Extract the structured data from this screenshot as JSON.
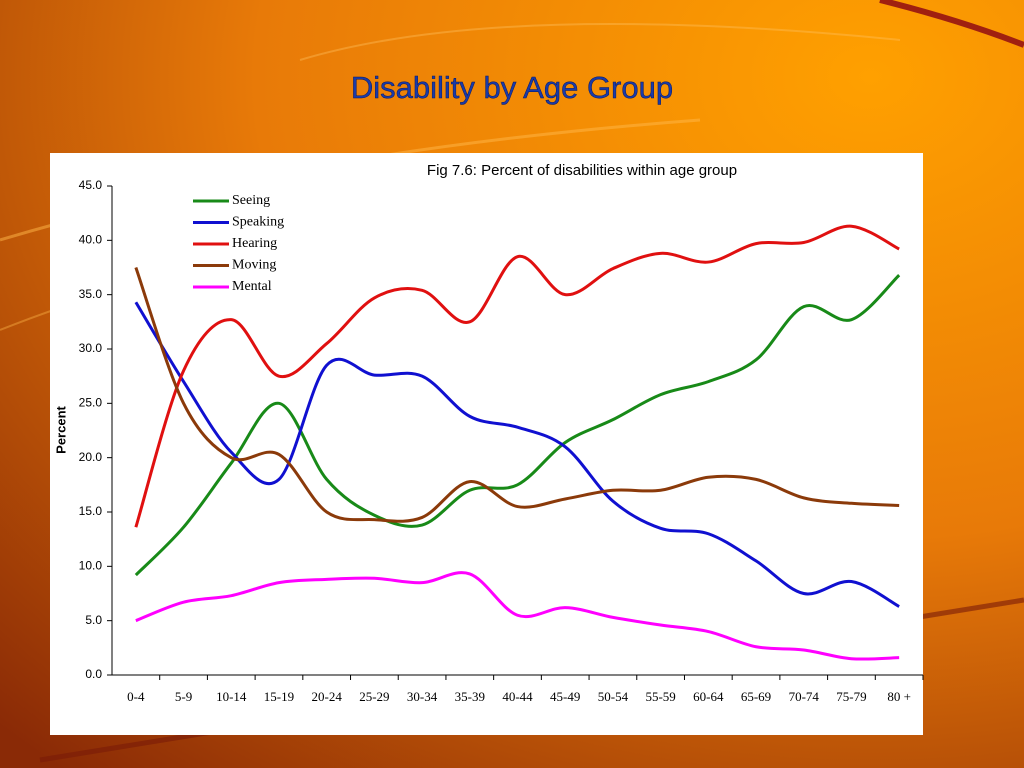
{
  "slide": {
    "title": "Disability by Age Group"
  },
  "chart_data": {
    "type": "line",
    "title": "Fig 7.6: Percent of disabilities within age group",
    "y_label": "Percent",
    "categories": [
      "0-4",
      "5-9",
      "10-14",
      "15-19",
      "20-24",
      "25-29",
      "30-34",
      "35-39",
      "40-44",
      "45-49",
      "50-54",
      "55-59",
      "60-64",
      "65-69",
      "70-74",
      "75-79",
      "80 +"
    ],
    "series": [
      {
        "name": "Seeing",
        "color": "#188a18",
        "values": [
          9.2,
          13.6,
          19.5,
          25.0,
          18.0,
          14.7,
          13.8,
          17.0,
          17.5,
          21.4,
          23.5,
          25.8,
          27.0,
          29.0,
          33.9,
          32.7,
          36.8
        ]
      },
      {
        "name": "Speaking",
        "color": "#1010d0",
        "values": [
          34.3,
          27.0,
          20.5,
          18.0,
          28.5,
          27.6,
          27.5,
          23.8,
          22.8,
          21.0,
          16.0,
          13.5,
          13.0,
          10.5,
          7.5,
          8.6,
          6.3
        ]
      },
      {
        "name": "Hearing",
        "color": "#e01010",
        "values": [
          13.6,
          28.0,
          32.7,
          27.5,
          30.5,
          34.7,
          35.4,
          32.5,
          38.5,
          35.0,
          37.4,
          38.8,
          38.0,
          39.7,
          39.8,
          41.3,
          39.2
        ]
      },
      {
        "name": "Moving",
        "color": "#8b3a0a",
        "values": [
          37.5,
          25.0,
          20.0,
          20.3,
          15.0,
          14.3,
          14.5,
          17.8,
          15.5,
          16.2,
          17.0,
          17.0,
          18.2,
          18.0,
          16.3,
          15.8,
          15.6
        ]
      },
      {
        "name": "Mental",
        "color": "#ff00ff",
        "values": [
          5.0,
          6.7,
          7.3,
          8.5,
          8.8,
          8.9,
          8.5,
          9.3,
          5.5,
          6.2,
          5.3,
          4.6,
          4.0,
          2.6,
          2.3,
          1.5,
          1.6
        ]
      }
    ],
    "ylim": [
      0,
      45
    ],
    "yticks": [
      {
        "value": 0,
        "label": "0.0"
      },
      {
        "value": 5,
        "label": "5.0"
      },
      {
        "value": 10,
        "label": "10.0"
      },
      {
        "value": 15,
        "label": "15.0"
      },
      {
        "value": 20,
        "label": "20.0"
      },
      {
        "value": 25,
        "label": "25.0"
      },
      {
        "value": 30,
        "label": "30.0"
      },
      {
        "value": 35,
        "label": "35.0"
      },
      {
        "value": 40,
        "label": "40.0"
      },
      {
        "value": 45,
        "label": "45.0"
      }
    ],
    "grid": false,
    "legend": "upper left"
  }
}
